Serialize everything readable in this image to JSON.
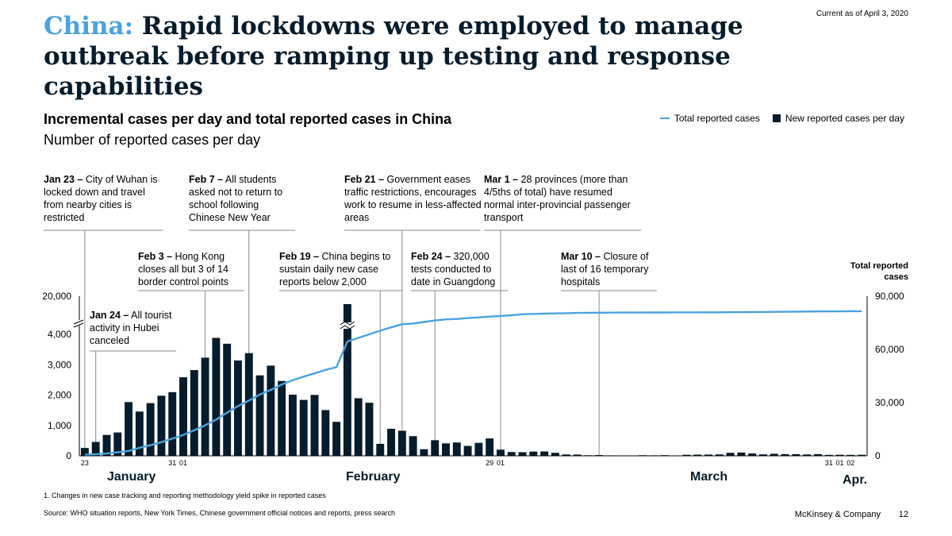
{
  "header": {
    "title_highlight": "China:",
    "title_rest": "Rapid lockdowns were employed to manage outbreak before ramping up testing and response capabilities",
    "current_as_of": "Current as of April 3, 2020"
  },
  "footer": {
    "footnote": "1.   Changes in new case tracking and reporting methodology yield spike in reported cases",
    "source": "Source: WHO situation reports, New York Times, Chinese government official notices and reports, press search",
    "brand": "McKinsey & Company",
    "page": "12"
  },
  "annotations": [
    {
      "date": "Jan 23 –",
      "text": " City of Wuhan is locked down and travel from nearby cities is restricted"
    },
    {
      "date": "Feb 7 –",
      "text": " All students asked not to return to school following Chinese New Year"
    },
    {
      "date": "Feb 21 –",
      "text": " Government eases traffic restrictions, encourages work to resume in less-affected areas"
    },
    {
      "date": "Mar 1 –",
      "text": " 28 provinces (more than 4/5ths of total) have resumed normal inter-provincial passenger transport"
    },
    {
      "date": "Feb 3 –",
      "text": " Hong Kong closes all but 3 of 14 border control points"
    },
    {
      "date": "Feb 19 –",
      "text": " China begins to sustain daily new case reports below 2,000"
    },
    {
      "date": "Feb 24 –",
      "text": " 320,000 tests conducted to date in Guangdong"
    },
    {
      "date": "Mar 10 –",
      "text": " Closure of last of 16 temporary hospitals"
    },
    {
      "date": "Jan 24 –",
      "text": " All tourist activity in Hubei canceled"
    }
  ],
  "chart_data": {
    "type": "bar",
    "title": "Incremental cases per day and total reported cases in China",
    "subtitle": "Number of reported cases per day",
    "legend": {
      "position": "top-right",
      "line_label": "Total reported cases",
      "bar_label": "New reported cases per day"
    },
    "y_left_ticks": [
      "0",
      "1,000",
      "2,000",
      "3,000",
      "4,000",
      "20,000"
    ],
    "y_left_break": "4,000 to 20,000 (axis break)",
    "y_right_title": "Total reported cases",
    "y_right_ticks": [
      "0",
      "30,000",
      "60,000",
      "90,000"
    ],
    "x_tick_labels": [
      "23",
      "31",
      "01",
      "29",
      "01",
      "31",
      "01",
      "02"
    ],
    "months": [
      "January",
      "February",
      "March",
      "Apr."
    ],
    "start_date": "Jan 23",
    "colors": {
      "bars": "#051c2c",
      "line": "#4aa3df",
      "highlight": "#4aa3df"
    },
    "series": [
      {
        "name": "New reported cases per day",
        "values": [
          259,
          457,
          688,
          769,
          1771,
          1459,
          1737,
          1981,
          2099,
          2589,
          2825,
          3235,
          3887,
          3694,
          3143,
          3385,
          2652,
          2973,
          2467,
          2015,
          1843,
          2007,
          1508,
          1120,
          15152,
          1898,
          1749,
          394,
          891,
          826,
          647,
          218,
          515,
          410,
          439,
          327,
          427,
          573,
          202,
          125,
          119,
          139,
          143,
          99,
          44,
          40,
          19,
          24,
          15,
          8,
          11,
          20,
          16,
          21,
          13,
          34,
          39,
          41,
          46,
          99,
          108,
          78,
          47,
          67,
          55,
          54,
          45,
          55,
          31,
          35,
          31,
          35
        ]
      },
      {
        "name": "Total reported cases",
        "values": [
          571,
          830,
          1287,
          1975,
          2744,
          4515,
          5974,
          7711,
          9692,
          11791,
          14380,
          17205,
          20438,
          24324,
          28018,
          31161,
          34546,
          37198,
          40171,
          42638,
          44653,
          46472,
          48467,
          49970,
          64460,
          66492,
          68500,
          70548,
          72436,
          74185,
          74576,
          75465,
          76288,
          76936,
          77150,
          77658,
          78064,
          78497,
          78824,
          79251,
          79824,
          80026,
          80151,
          80270,
          80409,
          80552,
          80651,
          80695,
          80735,
          80754,
          80778,
          80793,
          80813,
          80824,
          80844,
          80860,
          80881,
          80894,
          80928,
          80967,
          81008,
          81054,
          81093,
          81171,
          81218,
          81285,
          81340,
          81394,
          81439,
          81470,
          81518,
          81554
        ]
      }
    ]
  }
}
